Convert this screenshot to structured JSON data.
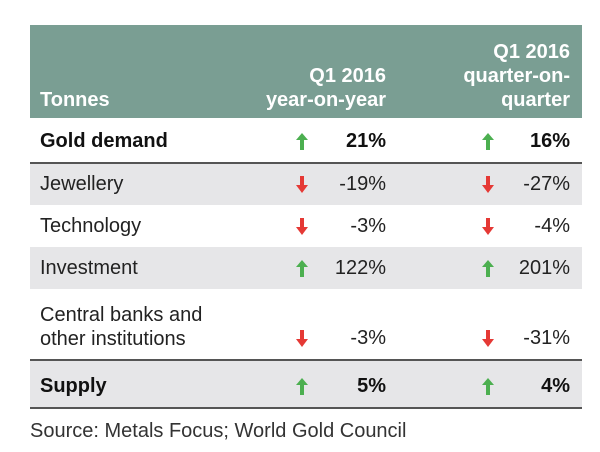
{
  "table": {
    "headers": {
      "label": "Tonnes",
      "col1": [
        "Q1 2016",
        "year-on-year"
      ],
      "col2": [
        "Q1 2016",
        "quarter-on-",
        "quarter"
      ]
    },
    "rows": [
      {
        "label": [
          "Gold demand"
        ],
        "yoy": "21%",
        "yoy_dir": "up",
        "qoq": "16%",
        "qoq_dir": "up",
        "bold": true
      },
      {
        "label": [
          "Jewellery"
        ],
        "yoy": "-19%",
        "yoy_dir": "down",
        "qoq": "-27%",
        "qoq_dir": "down"
      },
      {
        "label": [
          "Technology"
        ],
        "yoy": "-3%",
        "yoy_dir": "down",
        "qoq": "-4%",
        "qoq_dir": "down"
      },
      {
        "label": [
          "Investment"
        ],
        "yoy": "122%",
        "yoy_dir": "up",
        "qoq": "201%",
        "qoq_dir": "up"
      },
      {
        "label": [
          "Central banks and",
          "other institutions"
        ],
        "yoy": "-3%",
        "yoy_dir": "down",
        "qoq": "-31%",
        "qoq_dir": "down"
      },
      {
        "label": [
          "Supply"
        ],
        "yoy": "5%",
        "yoy_dir": "up",
        "qoq": "4%",
        "qoq_dir": "up",
        "bold": true
      }
    ]
  },
  "source": "Source: Metals Focus; World Gold Council",
  "colors": {
    "header": "#7a9e93",
    "up": "#4caf50",
    "down": "#e53935",
    "shade": "#e6e6e8"
  }
}
